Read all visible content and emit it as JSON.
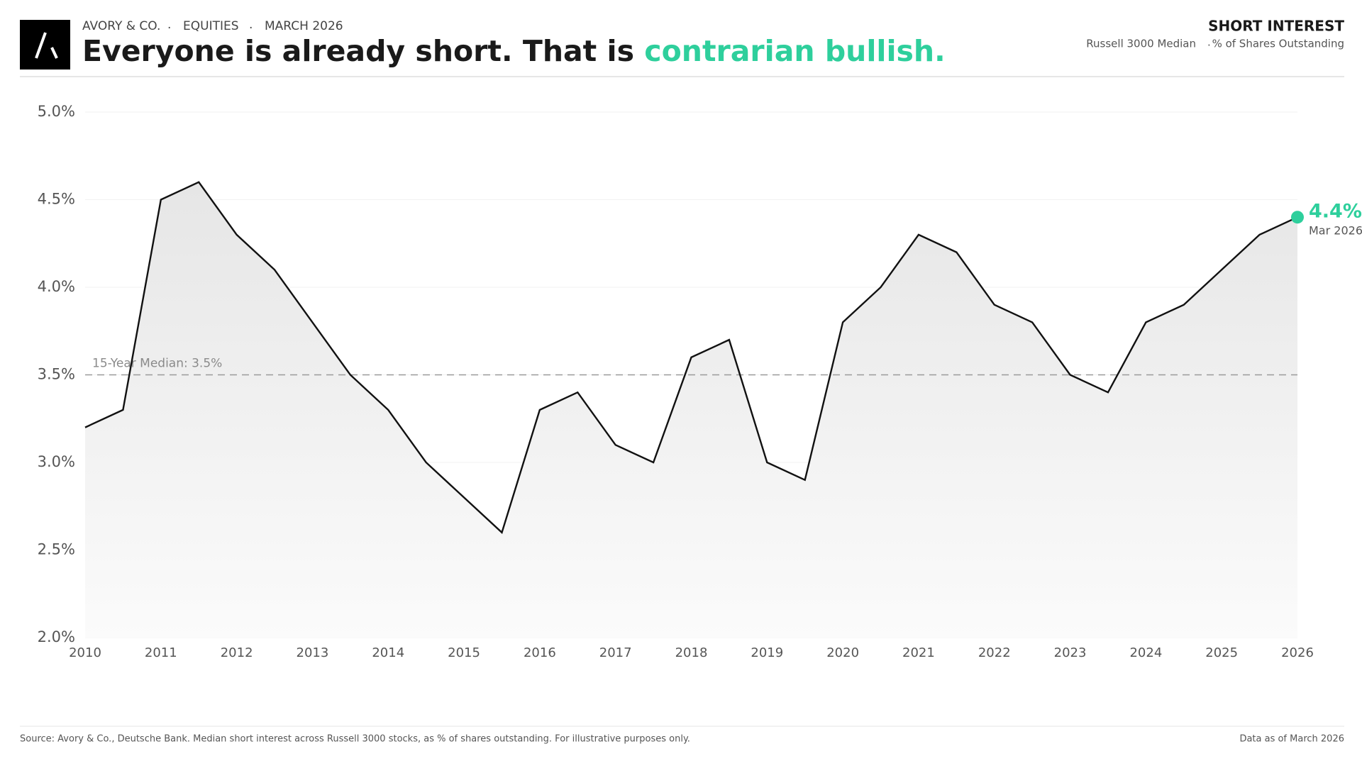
{
  "header": {
    "brand": "AVORY & CO.",
    "section": "EQUITIES",
    "date": "MARCH 2026",
    "title": "Everyone is already short. That is ",
    "title_accent": "contrarian bullish.",
    "metric": "SHORT INTEREST",
    "universe": "Russell 3000 Median",
    "unit": "% of Shares Outstanding"
  },
  "chart_data": {
    "type": "area",
    "x": [
      2010,
      2010.5,
      2011,
      2011.5,
      2012,
      2012.5,
      2013,
      2013.5,
      2014,
      2014.5,
      2015,
      2015.5,
      2016,
      2016.5,
      2017,
      2017.5,
      2018,
      2018.5,
      2019,
      2019.5,
      2020,
      2020.5,
      2021,
      2021.5,
      2022,
      2022.5,
      2023,
      2023.5,
      2024,
      2024.5,
      2025,
      2025.5,
      2026
    ],
    "values": [
      3.2,
      3.3,
      4.5,
      4.6,
      4.3,
      4.1,
      3.8,
      3.5,
      3.3,
      3.0,
      2.8,
      2.6,
      3.3,
      3.4,
      3.1,
      3.0,
      3.6,
      3.7,
      3.0,
      2.9,
      3.8,
      4.0,
      4.3,
      4.2,
      3.9,
      3.8,
      3.5,
      3.4,
      3.8,
      3.9,
      4.1,
      4.3,
      4.4
    ],
    "color": "#111111",
    "accent_color": "#2ecf9c",
    "xlim": [
      2010,
      2026
    ],
    "xticks": [
      2010,
      2011,
      2012,
      2013,
      2014,
      2015,
      2016,
      2017,
      2018,
      2019,
      2020,
      2021,
      2022,
      2023,
      2024,
      2025,
      2026
    ],
    "ylim": [
      2.0,
      5.0
    ],
    "yticks": [
      {
        "value": 2.0,
        "label": "2.0%"
      },
      {
        "value": 2.5,
        "label": "2.5%"
      },
      {
        "value": 3.0,
        "label": "3.0%"
      },
      {
        "value": 3.5,
        "label": "3.5%"
      },
      {
        "value": 4.0,
        "label": "4.0%"
      },
      {
        "value": 4.5,
        "label": "4.5%"
      },
      {
        "value": 5.0,
        "label": "5.0%"
      }
    ],
    "grid": true,
    "median": {
      "value": 3.5,
      "label": "15-Year Median: 3.5%"
    },
    "last_value_label": "4.4%",
    "last_date_label": "Mar 2026"
  },
  "footer": {
    "source": "Source: Avory & Co., Deutsche Bank. Median short interest across Russell 3000 stocks, as % of shares outstanding. For illustrative purposes only.",
    "as_of": "Data as of March 2026"
  }
}
